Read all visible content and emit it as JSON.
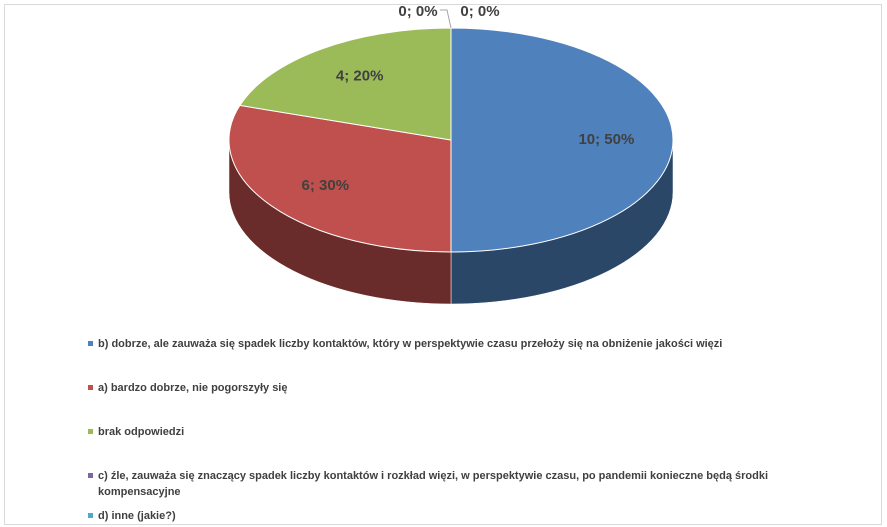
{
  "chart_data": {
    "type": "pie",
    "style": "3d",
    "categories": [
      "b) dobrze, ale zauważa się spadek liczby kontaktów, który w perspektywie czasu przełoży się na obniżenie jakości więzi",
      "a) bardzo dobrze, nie pogorszyły się",
      "brak odpowiedzi",
      "c) źle, zauważa się znaczący spadek liczby kontaktów i rozkład więzi, w perspektywie czasu, po pandemii konieczne będą środki kompensacyjne",
      "d) inne (jakie?)"
    ],
    "values": [
      10,
      6,
      4,
      0,
      0
    ],
    "value_labels": [
      "10; 50%",
      "6; 30%",
      "4; 20%",
      "0; 0%",
      "0; 0%"
    ],
    "colors": [
      "#4f81bd",
      "#c0504d",
      "#9bbb59",
      "#8064a2",
      "#4bacc6"
    ],
    "legend": "bottom"
  }
}
